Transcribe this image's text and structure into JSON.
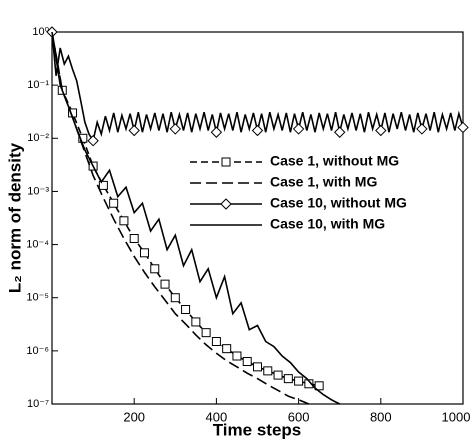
{
  "chart_data": {
    "type": "line",
    "xlabel": "Time steps",
    "ylabel": "L₂ norm of density",
    "xlim": [
      0,
      1000
    ],
    "xticks": [
      200,
      400,
      600,
      800,
      1000
    ],
    "ylim": [
      1e-07,
      1
    ],
    "log_y": true,
    "yticks": [
      {
        "value": 1e-07,
        "label": "10⁻⁷"
      },
      {
        "value": 1e-06,
        "label": "10⁻⁶"
      },
      {
        "value": 1e-05,
        "label": "10⁻⁵"
      },
      {
        "value": 0.0001,
        "label": "10⁻⁴"
      },
      {
        "value": 0.001,
        "label": "10⁻³"
      },
      {
        "value": 0.01,
        "label": "10⁻²"
      },
      {
        "value": 0.1,
        "label": "10⁻¹"
      },
      {
        "value": 1,
        "label": "10⁰"
      }
    ],
    "legend": "center-right",
    "series": [
      {
        "name": "Case 1, without MG",
        "color": "#000000",
        "dash": "7 4",
        "marker": "square",
        "x": [
          0,
          25,
          50,
          75,
          100,
          125,
          150,
          175,
          200,
          225,
          250,
          275,
          300,
          325,
          350,
          375,
          400,
          425,
          450,
          475,
          500,
          525,
          550,
          575,
          600,
          625,
          650
        ],
        "values": [
          1,
          0.08,
          0.03,
          0.01,
          0.003,
          0.0013,
          0.0006,
          0.00028,
          0.00013,
          7e-05,
          3.5e-05,
          1.8e-05,
          1e-05,
          6e-06,
          3.5e-06,
          2.2e-06,
          1.5e-06,
          1.1e-06,
          8e-07,
          6.3e-07,
          5e-07,
          4.2e-07,
          3.5e-07,
          3e-07,
          2.7e-07,
          2.4e-07,
          2.2e-07
        ]
      },
      {
        "name": "Case 1, with MG",
        "color": "#000000",
        "dash": "11 5",
        "marker": "none",
        "x": [
          0,
          25,
          50,
          75,
          100,
          125,
          150,
          175,
          200,
          225,
          250,
          275,
          300,
          325,
          350,
          375,
          400,
          425,
          450,
          475,
          500,
          525,
          550,
          575,
          600,
          625
        ],
        "values": [
          1,
          0.08,
          0.025,
          0.007,
          0.002,
          0.00075,
          0.0003,
          0.00013,
          6e-05,
          3e-05,
          1.6e-05,
          9e-06,
          5e-06,
          3.2e-06,
          2e-06,
          1.3e-06,
          9e-07,
          6.5e-07,
          5e-07,
          3.8e-07,
          3e-07,
          2.3e-07,
          1.8e-07,
          1.4e-07,
          1.2e-07,
          1e-07
        ]
      },
      {
        "name": "Case 10, without MG",
        "color": "#000000",
        "dash": "none",
        "marker": "diamond",
        "x": [
          0,
          10,
          20,
          30,
          40,
          50,
          60,
          70,
          80,
          90,
          100,
          110,
          120,
          130,
          140,
          150,
          160,
          170,
          180,
          190,
          200,
          210,
          220,
          230,
          240,
          250,
          260,
          270,
          280,
          290,
          300,
          310,
          320,
          330,
          340,
          350,
          360,
          370,
          380,
          390,
          400,
          410,
          420,
          430,
          440,
          450,
          460,
          470,
          480,
          490,
          500,
          510,
          520,
          530,
          540,
          550,
          560,
          570,
          580,
          590,
          600,
          610,
          620,
          630,
          640,
          650,
          660,
          670,
          680,
          690,
          700,
          710,
          720,
          730,
          740,
          750,
          760,
          770,
          780,
          790,
          800,
          810,
          820,
          830,
          840,
          850,
          860,
          870,
          880,
          890,
          900,
          910,
          920,
          930,
          940,
          950,
          960,
          970,
          980,
          990,
          1000
        ],
        "values": [
          1,
          0.15,
          0.5,
          0.25,
          0.35,
          0.2,
          0.12,
          0.05,
          0.02,
          0.012,
          0.009,
          0.02,
          0.012,
          0.026,
          0.014,
          0.03,
          0.013,
          0.027,
          0.015,
          0.029,
          0.014,
          0.031,
          0.013,
          0.028,
          0.015,
          0.03,
          0.014,
          0.029,
          0.013,
          0.031,
          0.015,
          0.028,
          0.014,
          0.03,
          0.013,
          0.029,
          0.015,
          0.031,
          0.014,
          0.028,
          0.013,
          0.03,
          0.015,
          0.029,
          0.014,
          0.031,
          0.013,
          0.028,
          0.015,
          0.03,
          0.014,
          0.029,
          0.013,
          0.031,
          0.015,
          0.028,
          0.014,
          0.03,
          0.013,
          0.029,
          0.015,
          0.031,
          0.014,
          0.028,
          0.013,
          0.03,
          0.015,
          0.029,
          0.014,
          0.031,
          0.013,
          0.028,
          0.015,
          0.03,
          0.014,
          0.029,
          0.013,
          0.031,
          0.015,
          0.028,
          0.014,
          0.03,
          0.013,
          0.029,
          0.015,
          0.031,
          0.014,
          0.028,
          0.013,
          0.03,
          0.015,
          0.029,
          0.014,
          0.031,
          0.013,
          0.028,
          0.015,
          0.03,
          0.014,
          0.029,
          0.016
        ]
      },
      {
        "name": "Case 10, with MG",
        "color": "#000000",
        "dash": "none",
        "marker": "none",
        "x": [
          0,
          20,
          40,
          60,
          80,
          100,
          120,
          140,
          160,
          180,
          200,
          220,
          240,
          260,
          280,
          300,
          320,
          340,
          360,
          380,
          400,
          420,
          440,
          460,
          480,
          500,
          520,
          540,
          560,
          580,
          600,
          620,
          640,
          660,
          680,
          700
        ],
        "values": [
          1,
          0.1,
          0.04,
          0.015,
          0.006,
          0.003,
          0.0015,
          0.0025,
          0.0008,
          0.0012,
          0.0004,
          0.0006,
          0.00018,
          0.0003,
          8e-05,
          0.00015,
          4e-05,
          8e-05,
          2e-05,
          3.5e-05,
          1e-05,
          2.5e-05,
          5e-06,
          8e-06,
          2.5e-06,
          3e-06,
          1.5e-06,
          1.2e-06,
          8e-07,
          6e-07,
          4e-07,
          3e-07,
          2e-07,
          1.5e-07,
          1.2e-07,
          1e-07
        ]
      }
    ]
  }
}
